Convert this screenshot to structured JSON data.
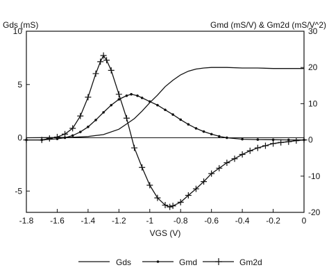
{
  "chart_data": {
    "type": "line",
    "xlabel": "VGS (V)",
    "ylabel_left": "Gds (mS)",
    "ylabel_right": "Gmd (mS/V) & Gm2d (mS/V^2)",
    "xlim": [
      -1.8,
      0
    ],
    "ylim_left": [
      -7,
      10
    ],
    "ylim_right": [
      -20,
      30
    ],
    "x_ticks": [
      -1.8,
      -1.6,
      -1.4,
      -1.2,
      -1,
      -0.8,
      -0.6,
      -0.4,
      -0.2,
      0
    ],
    "x_tick_labels": [
      "-1.8",
      "-1.6",
      "-1.4",
      "-1.2",
      "-1",
      "-0.8",
      "-0.6",
      "-0.4",
      "-0.2",
      "0"
    ],
    "y_left_ticks": [
      -5,
      0,
      5,
      10
    ],
    "y_left_tick_labels": [
      "-5",
      "0",
      "5",
      "10"
    ],
    "y_right_ticks": [
      -20,
      -10,
      0,
      10,
      20,
      30
    ],
    "y_right_tick_labels": [
      "-20",
      "-10",
      "0",
      "10",
      "20",
      "30"
    ],
    "legend_position": "bottom",
    "grid": false,
    "series": [
      {
        "name": "Gds",
        "marker": "none",
        "axis": "left",
        "x": [
          -1.8,
          -1.6,
          -1.5,
          -1.4,
          -1.3,
          -1.2,
          -1.15,
          -1.1,
          -1.05,
          -1.0,
          -0.95,
          -0.9,
          -0.85,
          -0.8,
          -0.75,
          -0.7,
          -0.65,
          -0.6,
          -0.5,
          -0.4,
          -0.3,
          -0.2,
          -0.1,
          0
        ],
        "values": [
          0,
          0.02,
          0.05,
          0.12,
          0.3,
          0.8,
          1.3,
          1.8,
          2.5,
          3.3,
          4.0,
          4.8,
          5.4,
          5.9,
          6.25,
          6.45,
          6.55,
          6.6,
          6.6,
          6.55,
          6.55,
          6.5,
          6.5,
          6.5
        ]
      },
      {
        "name": "Gmd",
        "marker": "dot",
        "axis": "right",
        "x": [
          -1.8,
          -1.7,
          -1.6,
          -1.55,
          -1.5,
          -1.45,
          -1.4,
          -1.35,
          -1.3,
          -1.25,
          -1.2,
          -1.15,
          -1.12,
          -1.08,
          -1.05,
          -1.0,
          -0.95,
          -0.9,
          -0.85,
          -0.8,
          -0.75,
          -0.7,
          -0.65,
          -0.6,
          -0.55,
          -0.5,
          -0.4,
          -0.3,
          -0.2,
          -0.1,
          0
        ],
        "values": [
          0,
          0,
          0.3,
          0.6,
          1.2,
          2.2,
          3.6,
          5.5,
          7.6,
          9.6,
          11.2,
          12.2,
          12.6,
          12.2,
          11.6,
          10.6,
          9.6,
          8.3,
          7.0,
          5.6,
          4.3,
          3.2,
          2.3,
          1.6,
          1.0,
          0.6,
          0.2,
          0.1,
          0.05,
          0,
          0
        ]
      },
      {
        "name": "Gm2d",
        "marker": "plus",
        "axis": "right",
        "x": [
          -1.8,
          -1.7,
          -1.65,
          -1.6,
          -1.55,
          -1.5,
          -1.45,
          -1.4,
          -1.35,
          -1.32,
          -1.3,
          -1.28,
          -1.25,
          -1.2,
          -1.15,
          -1.1,
          -1.05,
          -1.0,
          -0.95,
          -0.9,
          -0.87,
          -0.85,
          -0.8,
          -0.75,
          -0.7,
          -0.65,
          -0.6,
          -0.55,
          -0.5,
          -0.45,
          -0.4,
          -0.35,
          -0.3,
          -0.25,
          -0.2,
          -0.15,
          -0.1,
          -0.05,
          0
        ],
        "values": [
          0,
          0,
          0.4,
          0.8,
          1.6,
          3.2,
          6.6,
          11.8,
          18.3,
          21.6,
          23.3,
          22.0,
          19.2,
          12.6,
          6.0,
          -2.2,
          -7.6,
          -12.5,
          -16.0,
          -18.0,
          -18.5,
          -18.2,
          -17.2,
          -15.3,
          -13.5,
          -11.5,
          -9.3,
          -7.8,
          -6.3,
          -5.2,
          -4.0,
          -3.0,
          -2.2,
          -1.6,
          -1.0,
          -0.7,
          -0.5,
          -0.2,
          0
        ]
      }
    ]
  }
}
